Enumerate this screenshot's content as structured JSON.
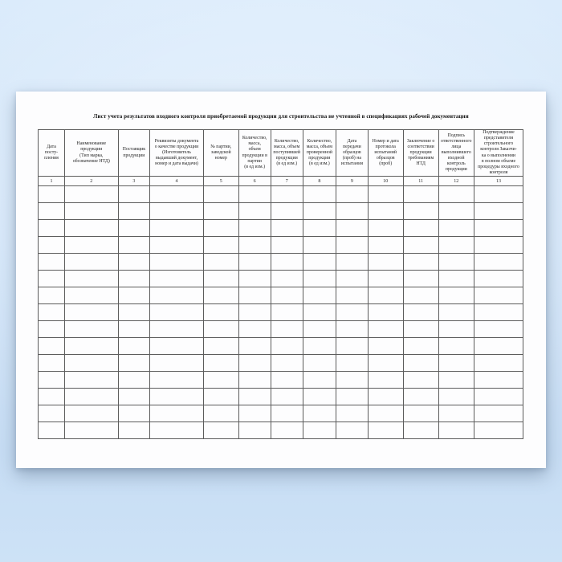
{
  "page": {
    "title": "Лист учета результатов входного контроля приобретаемой продукции для строительства не учтенной в спецификациях рабочей документации"
  },
  "table": {
    "columns": [
      {
        "num": "1",
        "label_lines": [
          "Дата",
          "посту-",
          "пления"
        ]
      },
      {
        "num": "2",
        "label_lines": [
          "Наименование",
          "продукции",
          "(Тип марка,",
          "обозначение НТД)"
        ]
      },
      {
        "num": "3",
        "label_lines": [
          "Поставщик",
          "продукции"
        ]
      },
      {
        "num": "4",
        "label_lines": [
          "Реквизиты документа",
          "о качестве продукции",
          "(Изготовитель",
          "выдавший документ,",
          "номер и дата выдачи)"
        ]
      },
      {
        "num": "5",
        "label_lines": [
          "№ партии,",
          "заводской",
          "номер"
        ]
      },
      {
        "num": "6",
        "label_lines": [
          "Количество,",
          "масса,",
          "объем",
          "продукции в",
          "партии",
          "(в ед изм.)"
        ]
      },
      {
        "num": "7",
        "label_lines": [
          "Количество,",
          "масса, объем",
          "поступившей",
          "продукции",
          "(в ед изм.)"
        ]
      },
      {
        "num": "8",
        "label_lines": [
          "Количество,",
          "масса, объем",
          "проверенной",
          "продукции",
          "(в ед изм.)"
        ]
      },
      {
        "num": "9",
        "label_lines": [
          "Дата",
          "передачи",
          "образцов",
          "(проб) на",
          "испытания"
        ]
      },
      {
        "num": "10",
        "label_lines": [
          "Номер и дата",
          "протокола",
          "испытаний",
          "образцов",
          "(проб)"
        ]
      },
      {
        "num": "11",
        "label_lines": [
          "Заключение о",
          "соответствии",
          "продукции",
          "требованиям",
          "НТД"
        ]
      },
      {
        "num": "12",
        "label_lines": [
          "Подпись",
          "ответственного",
          "лица",
          "выполнившего",
          "входной",
          "контроль",
          "продукции"
        ]
      },
      {
        "num": "13",
        "label_lines": [
          "Подтверждение",
          "представителя",
          "строительного",
          "контроля Заказчи-",
          "ка о выполнении",
          "в полном объеме",
          "процедуры входного",
          "контроля"
        ]
      }
    ],
    "empty_row_count": 15
  },
  "colors": {
    "paper": "#fdfdfe",
    "background_top": "#d9eafb",
    "background_bottom": "#c7ddf4",
    "table_border": "#5c5c5c"
  }
}
